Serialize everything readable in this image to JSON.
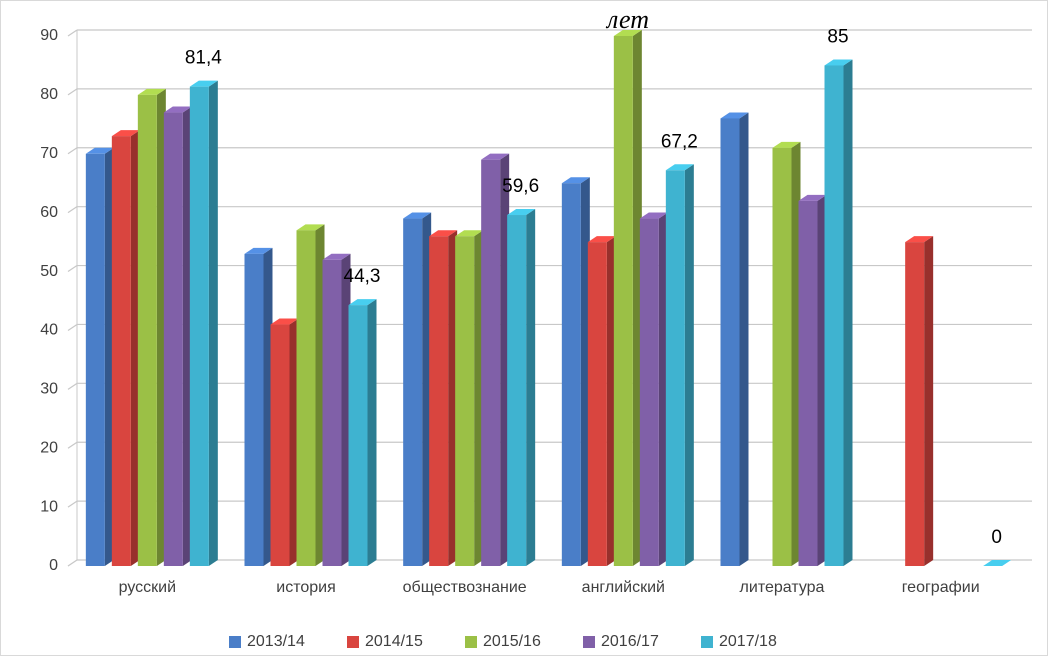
{
  "chart_data": {
    "type": "bar3d",
    "title": "лет",
    "categories": [
      "русский",
      "история",
      "обществознание",
      "английский",
      "литература",
      "географии"
    ],
    "series": [
      {
        "name": "2013/14",
        "color": "#4a7ec8",
        "values": [
          70,
          53,
          59,
          65,
          76,
          null
        ]
      },
      {
        "name": "2014/15",
        "color": "#d9453f",
        "values": [
          73,
          41,
          56,
          55,
          null,
          55
        ]
      },
      {
        "name": "2015/16",
        "color": "#9bc046",
        "values": [
          80,
          57,
          56,
          90,
          71,
          null
        ]
      },
      {
        "name": "2016/17",
        "color": "#8060a8",
        "values": [
          77,
          52,
          69,
          59,
          62,
          null
        ]
      },
      {
        "name": "2017/18",
        "color": "#3fb3d0",
        "values": [
          81.4,
          44.3,
          59.6,
          67.2,
          85,
          0
        ],
        "value_labels": [
          "81,4",
          "44,3",
          "59,6",
          "67,2",
          "85",
          "0"
        ]
      }
    ],
    "ylim": [
      0,
      90
    ],
    "yticks": [
      0,
      10,
      20,
      30,
      40,
      50,
      60,
      70,
      80,
      90
    ],
    "grid": true,
    "legend": "bottom"
  }
}
